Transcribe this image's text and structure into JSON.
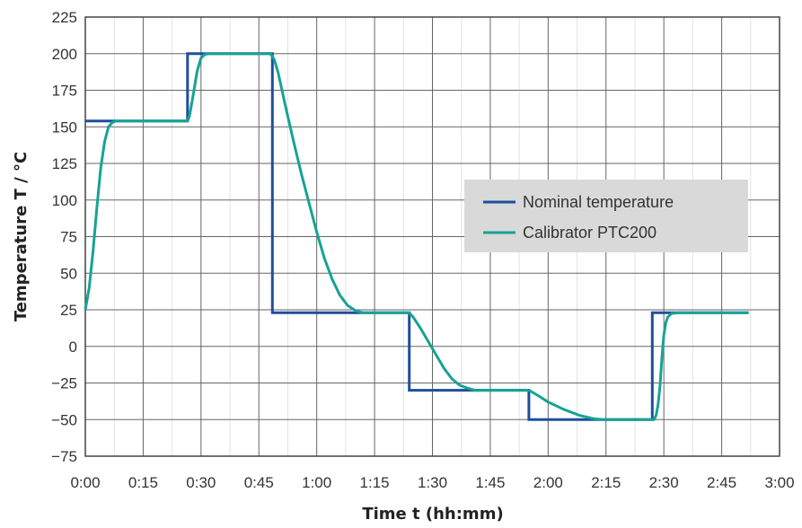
{
  "chart_data": {
    "type": "line",
    "xlabel": "Time t (hh:mm)",
    "ylabel": "Temperature T / °C",
    "xlim": [
      0,
      180
    ],
    "ylim": [
      -75,
      225
    ],
    "x_ticks": [
      0,
      15,
      30,
      45,
      60,
      75,
      90,
      105,
      120,
      135,
      150,
      165,
      180
    ],
    "x_tick_labels": [
      "0:00",
      "0:15",
      "0:30",
      "0:45",
      "1:00",
      "1:15",
      "1:30",
      "1:45",
      "2:00",
      "2:15",
      "2:30",
      "2:45",
      "3:00"
    ],
    "y_ticks": [
      -75,
      -50,
      -25,
      0,
      25,
      50,
      75,
      100,
      125,
      150,
      175,
      200,
      225
    ],
    "y_tick_labels": [
      "−75",
      "−50",
      "−25",
      "0",
      "25",
      "50",
      "75",
      "100",
      "125",
      "150",
      "175",
      "200",
      "225"
    ],
    "x_minor_ticks": [
      7.5,
      22.5,
      37.5,
      52.5,
      67.5,
      82.5,
      97.5,
      112.5,
      127.5,
      142.5,
      157.5,
      172.5
    ],
    "grid": true,
    "legend_position": "right",
    "series": [
      {
        "name": "Nominal temperature",
        "color": "#1f4e9c",
        "points": [
          [
            0,
            154
          ],
          [
            26.5,
            154
          ],
          [
            26.5,
            200
          ],
          [
            48.5,
            200
          ],
          [
            48.5,
            23
          ],
          [
            84,
            23
          ],
          [
            84,
            -30
          ],
          [
            115,
            -30
          ],
          [
            115,
            -50
          ],
          [
            147,
            -50
          ],
          [
            147,
            23
          ],
          [
            172,
            23
          ]
        ]
      },
      {
        "name": "Calibrator PTC200",
        "color": "#16a394",
        "points": [
          [
            0,
            25
          ],
          [
            1,
            40
          ],
          [
            2,
            65
          ],
          [
            3,
            95
          ],
          [
            4,
            122
          ],
          [
            5,
            140
          ],
          [
            6,
            150
          ],
          [
            7,
            153
          ],
          [
            8,
            154
          ],
          [
            26.5,
            154
          ],
          [
            27,
            157
          ],
          [
            28,
            172
          ],
          [
            29,
            188
          ],
          [
            30,
            197
          ],
          [
            31,
            199.5
          ],
          [
            32,
            200
          ],
          [
            48,
            200
          ],
          [
            49,
            196
          ],
          [
            50,
            187
          ],
          [
            51,
            175
          ],
          [
            52,
            163
          ],
          [
            54,
            140
          ],
          [
            56,
            118
          ],
          [
            58,
            98
          ],
          [
            60,
            78
          ],
          [
            62,
            60
          ],
          [
            64,
            46
          ],
          [
            66,
            35
          ],
          [
            68,
            28
          ],
          [
            70,
            24.5
          ],
          [
            72,
            23
          ],
          [
            84,
            23
          ],
          [
            85,
            20
          ],
          [
            87,
            12
          ],
          [
            89,
            3
          ],
          [
            91,
            -6
          ],
          [
            93,
            -15
          ],
          [
            95,
            -22
          ],
          [
            97,
            -26.5
          ],
          [
            99,
            -28.5
          ],
          [
            101,
            -30
          ],
          [
            115,
            -30
          ],
          [
            117,
            -33
          ],
          [
            120,
            -38
          ],
          [
            124,
            -43
          ],
          [
            128,
            -47
          ],
          [
            132,
            -49.5
          ],
          [
            134,
            -50
          ],
          [
            147.5,
            -50
          ],
          [
            148,
            -47
          ],
          [
            148.5,
            -40
          ],
          [
            149,
            -27
          ],
          [
            149.5,
            -8
          ],
          [
            150,
            8
          ],
          [
            150.5,
            16
          ],
          [
            151,
            20
          ],
          [
            152,
            22.5
          ],
          [
            154,
            23
          ],
          [
            172,
            23
          ]
        ]
      }
    ]
  }
}
